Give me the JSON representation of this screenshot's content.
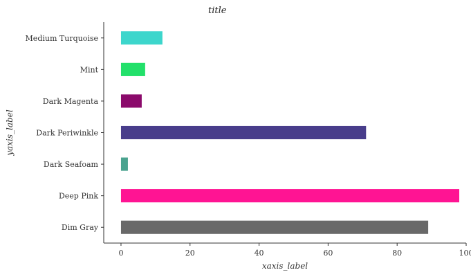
{
  "chart_data": {
    "type": "bar",
    "orientation": "horizontal",
    "title": "title",
    "xlabel": "xaxis_label",
    "ylabel": "yaxis_label",
    "xlim": [
      -5,
      100
    ],
    "xticks": [
      "0",
      "20",
      "40",
      "60",
      "80",
      "100"
    ],
    "xtick_values": [
      0,
      20,
      40,
      60,
      80,
      100
    ],
    "grid": false,
    "categories": [
      "Dim Gray",
      "Deep Pink",
      "Dark Seafoam",
      "Dark Periwinkle",
      "Dark Magenta",
      "Mint",
      "Medium Turquoise"
    ],
    "values": [
      89,
      98,
      2,
      71,
      6,
      7,
      12
    ],
    "colors": [
      "#696969",
      "#ff1493",
      "#4aa38f",
      "#483d8b",
      "#8b0a6b",
      "#22e06a",
      "#3dd6cc"
    ]
  }
}
